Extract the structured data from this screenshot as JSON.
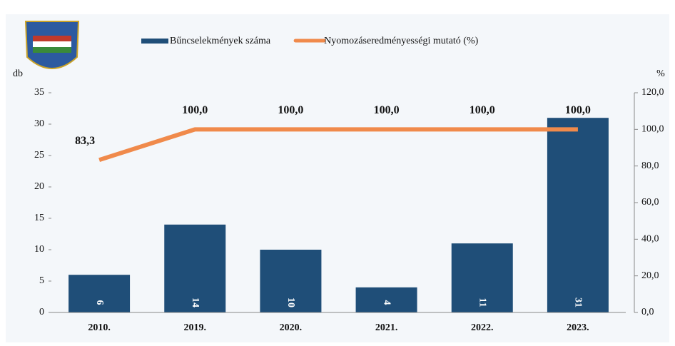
{
  "chart_data": {
    "type": "bar",
    "categories": [
      "2010.",
      "2019.",
      "2020.",
      "2021.",
      "2022.",
      "2023."
    ],
    "series": [
      {
        "name": "Bűncselekmények száma",
        "type": "bar",
        "color": "#1f4e78",
        "values": [
          6,
          14,
          10,
          4,
          11,
          31
        ]
      },
      {
        "name": "Nyomozáseredményességi mutató (%)",
        "type": "line",
        "axis": "y2",
        "color": "#f08a4b",
        "values": [
          83.3,
          100,
          100,
          100,
          100,
          100
        ],
        "value_labels": [
          "83,3",
          "100,0",
          "100,0",
          "100,0",
          "100,0",
          "100,0"
        ]
      }
    ],
    "ylabel": "db",
    "y2label": "%",
    "ylim": [
      0,
      35
    ],
    "yticks": [
      0,
      5,
      10,
      15,
      20,
      25,
      30,
      35
    ],
    "y2lim": [
      0,
      120
    ],
    "y2ticks": [
      {
        "value": 0,
        "label": "0,0"
      },
      {
        "value": 20,
        "label": "20,0"
      },
      {
        "value": 40,
        "label": "40,0"
      },
      {
        "value": 60,
        "label": "60,0"
      },
      {
        "value": 80,
        "label": "80,0"
      },
      {
        "value": 100,
        "label": "100,0"
      },
      {
        "value": 120,
        "label": "120,0"
      }
    ],
    "legend": "top"
  }
}
